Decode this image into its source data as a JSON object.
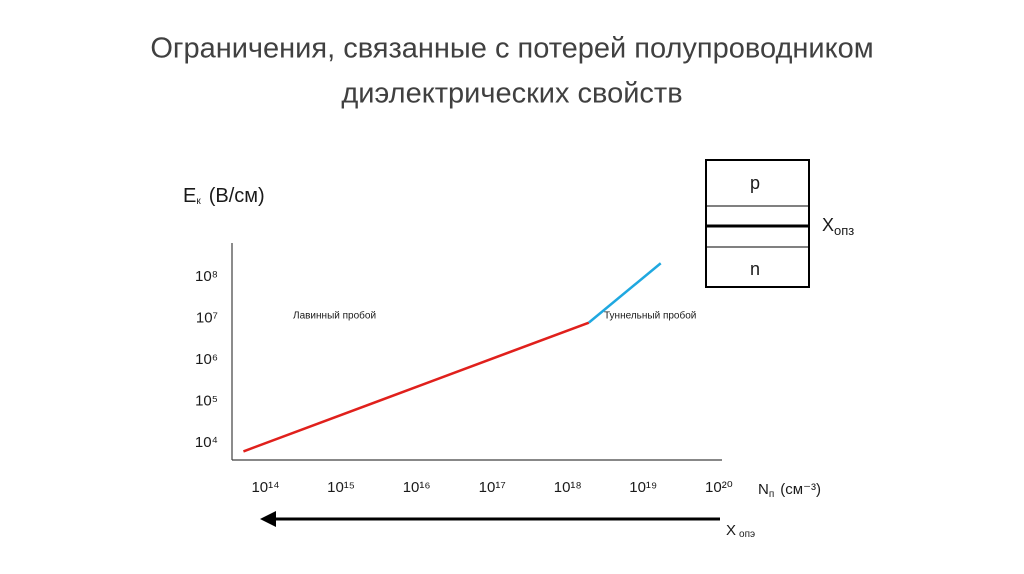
{
  "title_lines": [
    "Ограничения, связанные с потерей полупроводником",
    "диэлектрических  свойств"
  ],
  "chart_data": {
    "type": "line",
    "y_label": {
      "symbol": "E",
      "subscript": "к",
      "unit": "(В/см)"
    },
    "x_label": {
      "symbol": "N",
      "subscript": "п",
      "unit": "(см⁻³)"
    },
    "x_log": true,
    "y_log": true,
    "grid": false,
    "xlim": [
      36000000000000.0,
      1.1e+20
    ],
    "ylim": [
      4900.0,
      830000000.0
    ],
    "xticks": [
      {
        "value": 100000000000000.0,
        "label": "10¹⁴"
      },
      {
        "value": 1000000000000000.0,
        "label": "10¹⁵"
      },
      {
        "value": 1e+16,
        "label": "10¹⁶"
      },
      {
        "value": 1e+17,
        "label": "10¹⁷"
      },
      {
        "value": 1e+18,
        "label": "10¹⁸"
      },
      {
        "value": 1e+19,
        "label": "10¹⁹"
      },
      {
        "value": 1e+20,
        "label": "10²⁰"
      }
    ],
    "yticks": [
      {
        "value": 10000.0,
        "label": "10⁴"
      },
      {
        "value": 100000.0,
        "label": "10⁵"
      },
      {
        "value": 1000000.0,
        "label": "10⁶"
      },
      {
        "value": 10000000.0,
        "label": "10⁷"
      },
      {
        "value": 100000000.0,
        "label": "10⁸"
      }
    ],
    "series": [
      {
        "color": "#e0201c",
        "x": [
          51000000000000.0,
          1.9e+18
        ],
        "values": [
          7900.0,
          10000000.0
        ]
      },
      {
        "color": "#1fa8e0",
        "x": [
          1.9e+18,
          1.7e+19
        ],
        "values": [
          10000000.0,
          270000000.0
        ]
      }
    ],
    "annotations": [
      "Лавинный пробой",
      "Туннельный  пробой"
    ],
    "arrow_label": {
      "symbol": "X",
      "subscript": "опэ"
    }
  },
  "diagram": {
    "top": "p",
    "bottom": "n",
    "width_label": {
      "symbol": "X",
      "subscript": "опз"
    }
  }
}
